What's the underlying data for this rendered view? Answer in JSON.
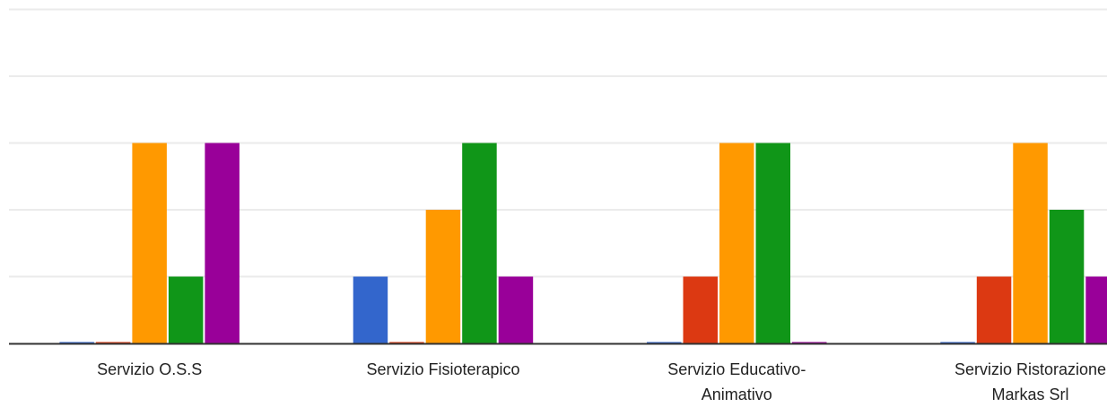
{
  "chart_data": {
    "type": "bar",
    "categories": [
      [
        "Servizio O.S.S"
      ],
      [
        "Servizio Fisioterapico"
      ],
      [
        "Servizio Educativo-",
        "Animativo"
      ],
      [
        "Servizio Ristorazione",
        "Markas Srl"
      ]
    ],
    "series": [
      {
        "color": "#3366cc",
        "values": [
          0,
          1,
          0,
          0
        ]
      },
      {
        "color": "#dc3912",
        "values": [
          0,
          0,
          1,
          1
        ]
      },
      {
        "color": "#ff9900",
        "values": [
          3,
          2,
          3,
          3
        ]
      },
      {
        "color": "#109618",
        "values": [
          1,
          3,
          3,
          2
        ]
      },
      {
        "color": "#990099",
        "values": [
          3,
          1,
          0,
          1
        ]
      }
    ],
    "ylim": [
      0,
      5
    ],
    "grid": true,
    "legend": "none",
    "colors": {
      "grid": "#ebebeb",
      "baseline": "#333333",
      "label": "#222222"
    }
  }
}
